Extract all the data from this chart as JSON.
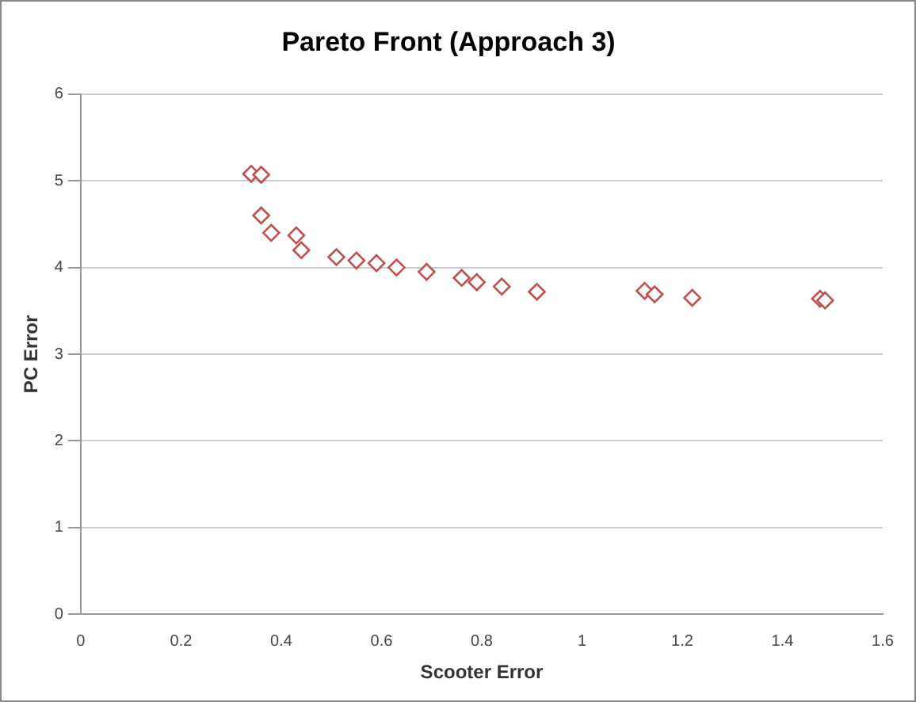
{
  "chart_data": {
    "type": "scatter",
    "title": "Pareto Front (Approach 3)",
    "xlabel": "Scooter Error",
    "ylabel": "PC Error",
    "x": [
      0.34,
      0.36,
      0.36,
      0.38,
      0.43,
      0.44,
      0.51,
      0.55,
      0.59,
      0.63,
      0.69,
      0.76,
      0.79,
      0.84,
      0.91,
      1.125,
      1.145,
      1.22,
      1.475,
      1.485
    ],
    "values": [
      5.08,
      5.07,
      4.6,
      4.4,
      4.37,
      4.2,
      4.12,
      4.08,
      4.05,
      4.0,
      3.95,
      3.88,
      3.83,
      3.78,
      3.72,
      3.73,
      3.69,
      3.65,
      3.64,
      3.62
    ],
    "color": "#c0504d",
    "marker": "diamond",
    "grid": "y",
    "legend": false,
    "xlim": [
      0,
      1.6
    ],
    "xticks": [
      0,
      0.2,
      0.4,
      0.6,
      0.8,
      1,
      1.2,
      1.4,
      1.6
    ],
    "ylim": [
      0,
      6
    ],
    "yticks": [
      0,
      1,
      2,
      3,
      4,
      5,
      6
    ]
  }
}
